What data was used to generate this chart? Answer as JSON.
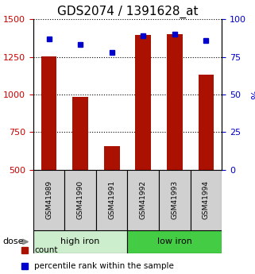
{
  "title": "GDS2074 / 1391628_at",
  "samples": [
    "GSM41989",
    "GSM41990",
    "GSM41991",
    "GSM41992",
    "GSM41993",
    "GSM41994"
  ],
  "counts": [
    1255,
    985,
    660,
    1395,
    1400,
    1130
  ],
  "percentiles": [
    87,
    83,
    78,
    89,
    90,
    86
  ],
  "ylim_left": [
    500,
    1500
  ],
  "ylim_right": [
    0,
    100
  ],
  "yticks_left": [
    500,
    750,
    1000,
    1250,
    1500
  ],
  "yticks_right": [
    0,
    25,
    50,
    75,
    100
  ],
  "bar_color": "#aa1100",
  "dot_color": "#0000cc",
  "group_labels": [
    "high iron",
    "low iron"
  ],
  "group_colors": [
    "#cceecc",
    "#44cc44"
  ],
  "group_ranges": [
    [
      0,
      3
    ],
    [
      3,
      6
    ]
  ],
  "legend_items": [
    "count",
    "percentile rank within the sample"
  ],
  "xlabel_label": "dose",
  "background_color": "#ffffff",
  "label_color_left": "#cc0000",
  "label_color_right": "#0000cc",
  "bar_bottom": 500,
  "right_axis_label": "%"
}
